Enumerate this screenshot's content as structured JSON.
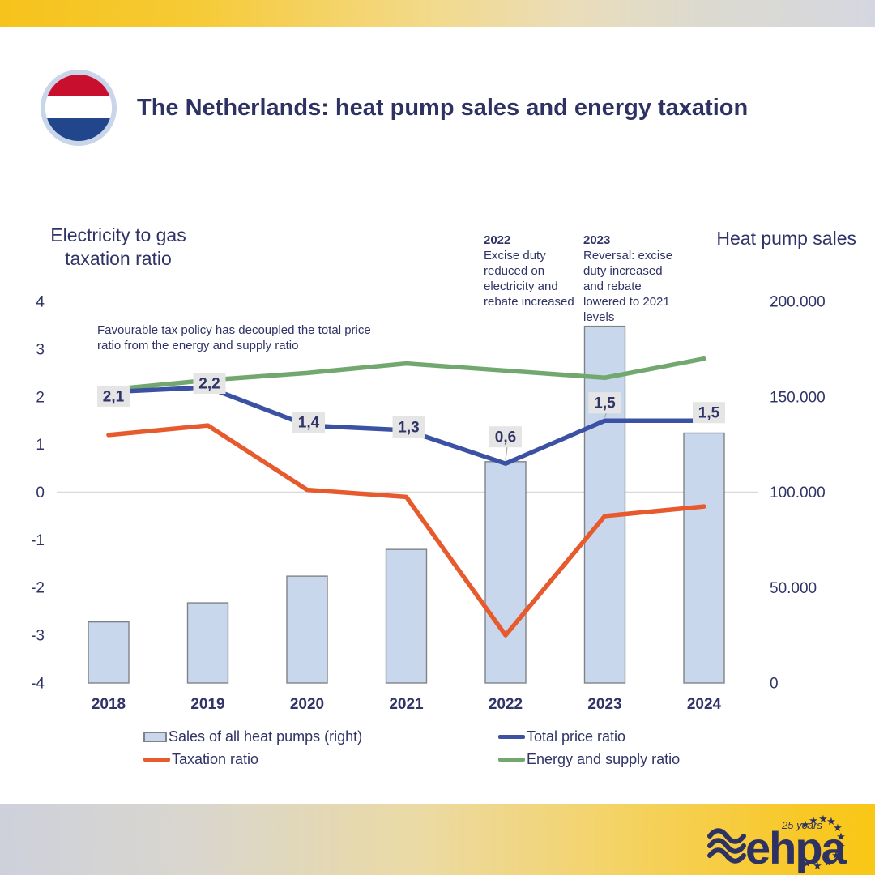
{
  "header": {
    "title": "The Netherlands: heat pump sales and energy taxation"
  },
  "flag": {
    "country": "netherlands",
    "red": "#C8102E",
    "white": "#FFFFFF",
    "blue": "#21468B",
    "ring": "#C9D5E9"
  },
  "annotations": {
    "decoupled": "Favourable tax policy has decoupled the total price ratio from the energy and supply ratio",
    "y2022": {
      "year": "2022",
      "text": "Excise duty reduced on electricity and rebate increased"
    },
    "y2023": {
      "year": "2023",
      "text": "Reversal: excise duty increased and rebate lowered to 2021 levels"
    }
  },
  "legend": {
    "items": [
      {
        "label": "Sales of all heat pumps (right)",
        "type": "bar"
      },
      {
        "label": "Total price ratio",
        "type": "line",
        "color": "#3B51A3"
      },
      {
        "label": "Taxation ratio",
        "type": "line",
        "color": "#E65A2E"
      },
      {
        "label": "Energy and supply ratio",
        "type": "line",
        "color": "#72A870"
      }
    ]
  },
  "logo": {
    "brand": "ehpa",
    "tagline": "25 years"
  },
  "chart_data": {
    "type": "combo bar+line, dual axis",
    "categories": [
      "2018",
      "2019",
      "2020",
      "2021",
      "2022",
      "2023",
      "2024"
    ],
    "bar_series": {
      "name": "Sales of all heat pumps (right)",
      "axis": "right",
      "values": [
        32000,
        42000,
        56000,
        70000,
        116000,
        187000,
        131000
      ]
    },
    "line_series": [
      {
        "name": "Total price ratio",
        "color": "#3B51A3",
        "axis": "left",
        "values": [
          2.1,
          2.2,
          1.4,
          1.3,
          0.6,
          1.5,
          1.5
        ],
        "point_labels": [
          "2,1",
          "2,2",
          "1,4",
          "1,3",
          "0,6",
          "1,5",
          "1,5"
        ]
      },
      {
        "name": "Taxation ratio",
        "color": "#E65A2E",
        "axis": "left",
        "values": [
          1.2,
          1.4,
          0.05,
          -0.1,
          -3.0,
          -0.5,
          -0.3
        ]
      },
      {
        "name": "Energy and supply ratio",
        "color": "#72A870",
        "axis": "left",
        "values": [
          2.15,
          2.35,
          2.5,
          2.7,
          2.55,
          2.4,
          2.8
        ]
      }
    ],
    "left_axis": {
      "title_line1": "Electricity to gas",
      "title_line2": "taxation ratio",
      "ticks": [
        4,
        3,
        2,
        1,
        0,
        -1,
        -2,
        -3,
        -4
      ],
      "range": [
        -4,
        4
      ]
    },
    "right_axis": {
      "title": "Heat pump sales",
      "ticks": [
        {
          "label": "200.000",
          "value": 200000
        },
        {
          "label": "150.000",
          "value": 150000
        },
        {
          "label": "100.000",
          "value": 100000
        },
        {
          "label": "50.000",
          "value": 50000
        },
        {
          "label": "0",
          "value": 0
        }
      ],
      "range": [
        0,
        200000
      ]
    },
    "grid": "zero line only",
    "legend_position": "bottom",
    "colors": {
      "bar_fill": "#C9D7EC",
      "bar_border": "#7F8387",
      "label_bg": "#E5E5E5",
      "text": "#2F3366",
      "gridline": "#D9D9D9",
      "leader": "#A6A6A6"
    }
  }
}
